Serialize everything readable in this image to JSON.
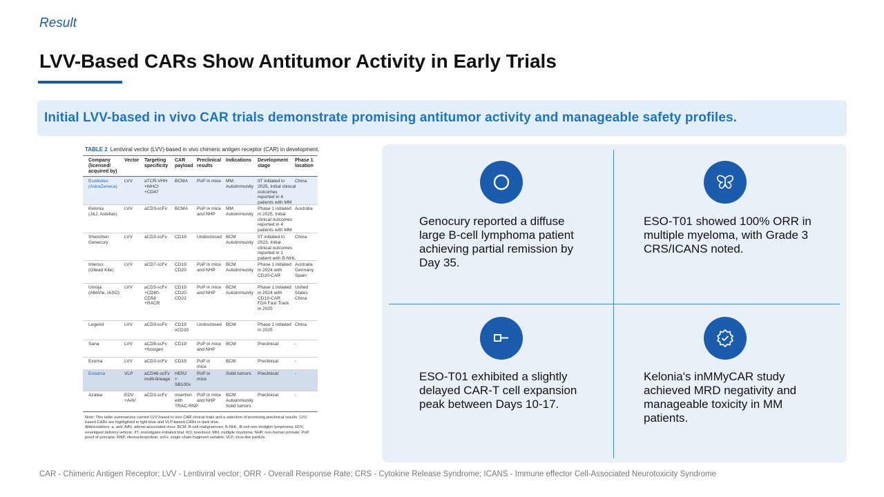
{
  "section_label": "Result",
  "title": "LVV-Based CARs Show Antitumor Activity in Early Trials",
  "banner": "Initial LVV-based in vivo CAR trials demonstrate promising antitumor activity and manageable safety profiles.",
  "table": {
    "caption_tag": "TABLE 2",
    "caption": "Lentiviral vector (LVV)-based in vivo chimeric antigen receptor (CAR) in development.",
    "headers": [
      "Company\n(licensed/\nacquired by)",
      "Vector",
      "Targeting\nspecificity",
      "CAR\npayload",
      "Preclinical\nresults",
      "Indications",
      "Development\nstage",
      "Phase 1\nlocation"
    ],
    "rows": [
      [
        "Esobiotec\n(AstraZeneca)",
        "LVV",
        "aTCR-VHH\n+MHCI\n+CD47",
        "BCMA",
        "PoP in mice",
        "MM\nAutoimmunity",
        "IIT initiated in\n2025, Initial clinical\noutcomes\nreported in 4\npatients with MM",
        "China"
      ],
      [
        "Kelonia\n(J&J, Astellas)",
        "LVV",
        "aCD3-scFv",
        "BCMA",
        "PoP in mice\nand NHP",
        "MM\nAutoimmunity",
        "Phase 1 initiated\nin 2025, Initial\nclinical outcomes\nreported in 4\npatients with MM",
        "Australia"
      ],
      [
        "Shenzhen\nGenecury",
        "LVV",
        "aCD3-scFv",
        "CD19",
        "Undisclosed",
        "BCM\nAutoimmunity",
        "IIT initiated in\n2023, Initial\nclinical outcomes\nreported in 1\npatient with B-NHL",
        "China"
      ],
      [
        "Interius\n(Gilead Kite)",
        "LVV",
        "aCD7-scFv",
        "CD19\nCD20",
        "PoP in mice\nand NHP",
        "BCM\nAutoimmunity",
        "Phase 1 initiated\nin 2024 with\nCD20-CAR",
        "Australia\nGermany\nSpain"
      ],
      [
        "Umoja\n(AbbVie, IASO)",
        "LVV",
        "aCD3-scFv\n+CD80-\nCD58\n+RACR",
        "CD19\nCD20\nCD22",
        "PoP in mice\nand NHP",
        "BCM\nAutoimmunity",
        "Phase 1 initiated\nin 2024 with\nCD19-CAR\nFDA Fast Track\nin 2025",
        "United\nStates\nChina"
      ],
      [
        "Legend",
        "LVV",
        "aCD3-scFv",
        "CD19\nxCD20",
        "Undisclosed",
        "BCM",
        "Phase 1 initiated\nin 2025",
        "China"
      ],
      [
        "Sana",
        "LVV",
        "aCD8-scFv\n+fusogen",
        "CD19",
        "PoP in mice\nand NHP",
        "BCM",
        "Preclinical",
        "-"
      ],
      [
        "Exuma",
        "LVV",
        "aCD3-scFv",
        "CD19",
        "PoP in\nmice",
        "BCM",
        "Preclinical",
        "-"
      ],
      [
        "Ensoma",
        "VLP",
        "aCD46-scFv\nmulti-lineage",
        "HER2\n+\nSB100x",
        "PoP in\nmice",
        "Solid tumors",
        "Preclinical",
        "-"
      ],
      [
        "Azalea",
        "EDV\n+AAV",
        "aCD3-scFv",
        "insertion\nwith\nTRAC-RNP",
        "PoP in mice\nand NHP",
        "BCM\nAutoimmunity\nSolid tumors",
        "Preclinical",
        "-"
      ]
    ],
    "row_shading": [
      "light",
      "none",
      "none",
      "none",
      "none",
      "none",
      "none",
      "none",
      "dark",
      "none"
    ],
    "note": "Note: This table summarizes current LVV-based in vivo CAR clinical trials and a selection of promising preclinical results. LVV-based CARs are highlighted in light blue and VLP-based CARs in dark blue.\nAbbreviations: a, anti; AAV, adeno-associated virus; BCM, B-cell malignancies; B-NHL, B-cell non-Hodgkin lymphoma; EDV, enveloped delivery vehicle; IIT, investigator-initiated trial; KO, knockout; MM, multiple myeloma; NHP, non-human primate; PoP, proof of principle; RNP, ribonucleoprotein; scFv, single-chain fragment variable; VLP, virus-like particle."
  },
  "findings": [
    {
      "icon": "circle-icon",
      "text": "Genocury reported a diffuse large B-cell lymphoma patient achieving partial remission by Day 35."
    },
    {
      "icon": "butterfly-icon",
      "text": "ESO-T01 showed 100% ORR in multiple myeloma, with Grade 3 CRS/ICANS noted."
    },
    {
      "icon": "key-icon",
      "text": "ESO-T01 exhibited a slightly delayed CAR-T cell expansion peak between Days 10-17."
    },
    {
      "icon": "badge-check-icon",
      "text": "Kelonia's inMMyCAR study achieved MRD negativity and manageable toxicity in MM patients."
    }
  ],
  "footnote": "CAR - Chimeric Antigen Receptor; LVV - Lentiviral vector; ORR - Overall Response Rate; CRS - Cytokine Release Syndrome; ICANS - Immune effector Cell-Associated Neurotoxicity Syndrome",
  "colors": {
    "accent": "#1c5cad",
    "banner_bg": "#e3f0fb",
    "banner_text": "#1e73c0",
    "panel_bg": "#e9f0f7"
  }
}
